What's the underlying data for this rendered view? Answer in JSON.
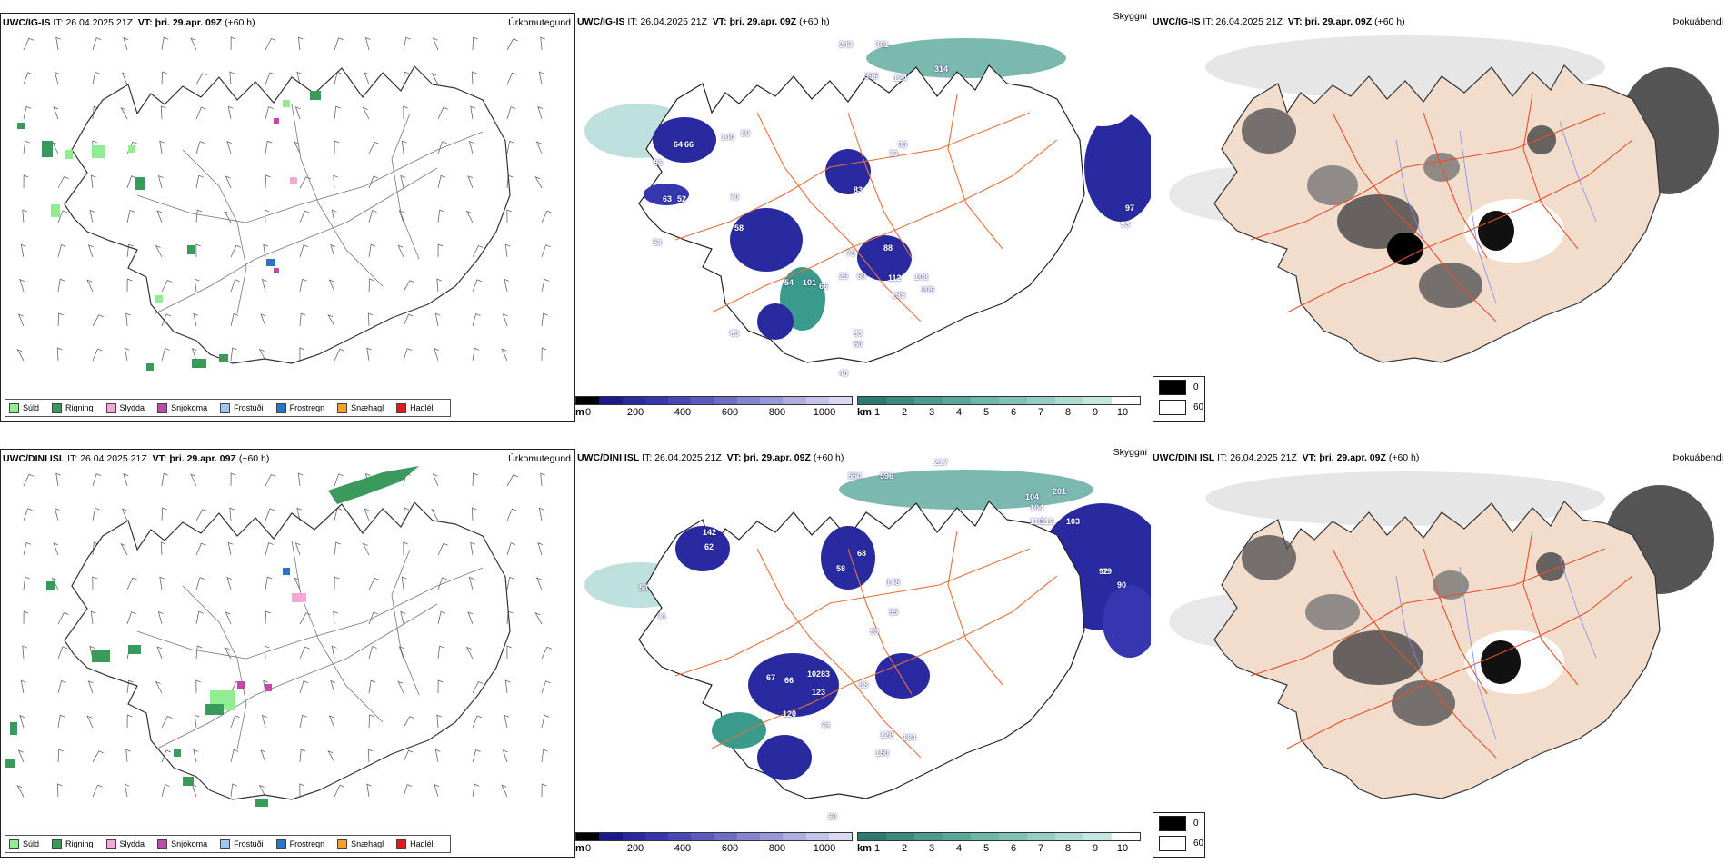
{
  "colors": {
    "drizzle": "#90ee90",
    "rain": "#3a9a5c",
    "sleet": "#f3a8d8",
    "snow": "#c14aa8",
    "freezing_drizzle": "#9cc8f0",
    "freezing_rain": "#2e74c4",
    "graupel": "#f0a030",
    "hail": "#e01818",
    "land_beige": "#f2dccb",
    "roads": "#e8703c",
    "rivers": "#7c8cf0",
    "low_vis": "#2a2aa0",
    "vis_teal": "#3a9a8c"
  },
  "rows": [
    {
      "model": "UWC/IG-IS",
      "it_label": "IT:",
      "it_value": "26.04.2025 21Z",
      "vt_label": "VT:",
      "vt_value": "þri. 29.apr. 09Z",
      "lead": "(+60 h)"
    },
    {
      "model": "UWC/DINI ISL",
      "it_label": "IT:",
      "it_value": "26.04.2025 21Z",
      "vt_label": "VT:",
      "vt_value": "þri. 29.apr. 09Z",
      "lead": "(+60 h)"
    }
  ],
  "panel_titles": {
    "precip": "Úrkomutegund",
    "visibility": "Skyggni",
    "fog": "Þokuábendi"
  },
  "precip_legend": [
    {
      "label": "Súld",
      "color_key": "drizzle"
    },
    {
      "label": "Rigning",
      "color_key": "rain"
    },
    {
      "label": "Slydda",
      "color_key": "sleet"
    },
    {
      "label": "Snjókoma",
      "color_key": "snow"
    },
    {
      "label": "Frostúði",
      "color_key": "freezing_drizzle"
    },
    {
      "label": "Frostregn",
      "color_key": "freezing_rain"
    },
    {
      "label": "Snæhagl",
      "color_key": "graupel"
    },
    {
      "label": "Haglél",
      "color_key": "hail"
    }
  ],
  "ceiling_scale": {
    "unit": "m",
    "ticks": [
      "0",
      "200",
      "400",
      "600",
      "800",
      "1000"
    ],
    "colors": [
      "#000000",
      "#1a1a8a",
      "#2a2aa0",
      "#3636b0",
      "#4848b8",
      "#5a5ac0",
      "#6e6ec8",
      "#8484d0",
      "#9898d8",
      "#aeaee0",
      "#c4c4ea",
      "#d8d8f2"
    ]
  },
  "vis_scale": {
    "unit": "km",
    "ticks": [
      "1",
      "2",
      "3",
      "4",
      "5",
      "6",
      "7",
      "8",
      "9",
      "10"
    ],
    "colors": [
      "#2e7a70",
      "#3a8a80",
      "#4a9a8e",
      "#5aa89c",
      "#6cb6aa",
      "#80c2b8",
      "#96cec6",
      "#aedad4",
      "#c6e6e2",
      "#ffffff"
    ]
  },
  "fog_key": [
    {
      "value": "0",
      "color": "#000000"
    },
    {
      "value": "60",
      "color": "#ffffff"
    }
  ],
  "ceiling_labels": {
    "top": [
      "243",
      "301",
      "314",
      "396",
      "124",
      "33",
      "73",
      "97",
      "93",
      "64",
      "66",
      "86",
      "140",
      "59",
      "63",
      "52",
      "53",
      "58",
      "70",
      "83",
      "75",
      "88",
      "29",
      "69",
      "54",
      "101",
      "66",
      "108",
      "109",
      "135",
      "112",
      "83",
      "60",
      "65",
      "40"
    ],
    "bottom": [
      "217",
      "560",
      "596",
      "201",
      "104",
      "104",
      "113",
      "112",
      "103",
      "79",
      "90",
      "92",
      "142",
      "62",
      "53",
      "71",
      "68",
      "55",
      "148",
      "58",
      "99",
      "88",
      "102",
      "83",
      "123",
      "67",
      "66",
      "120",
      "73",
      "128",
      "150",
      "184",
      "60"
    ]
  }
}
